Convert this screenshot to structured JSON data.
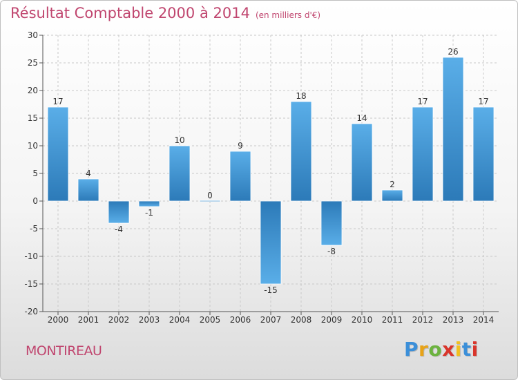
{
  "title": {
    "main": "Résultat Comptable 2000 à 2014",
    "unit": "(en milliers d'€)"
  },
  "commune": "MONTIREAU",
  "logo": {
    "letters": [
      "P",
      "r",
      "o",
      "x",
      "i",
      "t",
      "i"
    ],
    "colors": [
      "#3b8fd9",
      "#e8a317",
      "#6cb33f",
      "#d9352b",
      "#f2c01e",
      "#3b8fd9",
      "#d9352b"
    ]
  },
  "colors": {
    "bar_top": "#5aaee8",
    "bar_bottom": "#2c7ab8",
    "grid": "#c8c8c8",
    "title": "#c0466f"
  },
  "chart_data": {
    "type": "bar",
    "title": "Résultat Comptable 2000 à 2014",
    "categories": [
      "2000",
      "2001",
      "2002",
      "2003",
      "2004",
      "2005",
      "2006",
      "2007",
      "2008",
      "2009",
      "2010",
      "2011",
      "2012",
      "2013",
      "2014"
    ],
    "values": [
      17,
      4,
      -4,
      -1,
      10,
      0,
      9,
      -15,
      18,
      -8,
      14,
      2,
      17,
      26,
      17
    ],
    "data_labels": [
      "17",
      "4",
      "-4",
      "-1",
      "10",
      "0",
      "9",
      "-15",
      "18",
      "-8",
      "14",
      "2",
      "17",
      "26",
      "17"
    ],
    "ylim": [
      -20,
      30
    ],
    "yticks": [
      "30",
      "25",
      "20",
      "15",
      "10",
      "5",
      "0",
      "-5",
      "-10",
      "-15",
      "-20"
    ],
    "ytick_values": [
      30,
      25,
      20,
      15,
      10,
      5,
      0,
      -5,
      -10,
      -15,
      -20
    ],
    "grid": true,
    "xlabel": "",
    "ylabel": ""
  }
}
